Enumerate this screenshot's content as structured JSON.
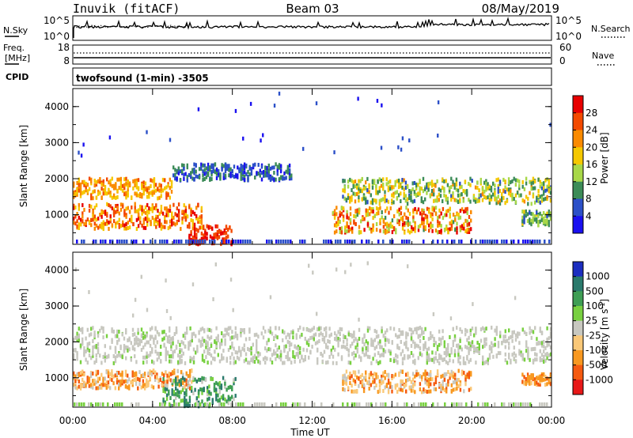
{
  "header": {
    "station": "Inuvik (fitACF)",
    "beam": "Beam 03",
    "date": "08/May/2019"
  },
  "top_panel": {
    "left_label": "N.Sky",
    "right_label": "N.Search",
    "left_ticks": [
      "10^5",
      "10^0"
    ],
    "right_ticks": [
      "10^5",
      "10^0"
    ]
  },
  "freq_panel": {
    "left_label_1": "Freq.",
    "left_label_2": "[MHz]",
    "right_label": "Nave",
    "left_ticks": [
      "18",
      "8"
    ],
    "right_ticks": [
      "60",
      "0"
    ]
  },
  "cpid": {
    "label": "CPID",
    "program": "twofsound (1-min) -3505"
  },
  "chart_data": [
    {
      "type": "heatmap",
      "name": "power",
      "ylabel": "Slant Range [km]",
      "yticks": [
        1000,
        2000,
        3000,
        4000
      ],
      "ylim": [
        180,
        4500
      ],
      "xlim": [
        0,
        24
      ],
      "colorbar": {
        "label": "Power [dB]",
        "ticks": [
          "28",
          "24",
          "20",
          "16",
          "12",
          "8",
          "4"
        ],
        "colors": [
          "#e80000",
          "#f34a00",
          "#fa8a00",
          "#f5c800",
          "#a8d848",
          "#3c8c58",
          "#2c50c8",
          "#1a10f0"
        ]
      },
      "features": [
        {
          "t0": 0.0,
          "t1": 5.0,
          "r0": 1450,
          "r1": 2000,
          "level": "16-24"
        },
        {
          "t0": 5.0,
          "t1": 11.0,
          "r0": 1950,
          "r1": 2400,
          "level": "4-12"
        },
        {
          "t0": 13.5,
          "t1": 24.0,
          "r0": 1300,
          "r1": 2000,
          "level": "8-20"
        },
        {
          "t0": 0.0,
          "t1": 6.5,
          "r0": 600,
          "r1": 1300,
          "level": "16-28"
        },
        {
          "t0": 5.8,
          "t1": 8.0,
          "r0": 180,
          "r1": 700,
          "level": "24-28"
        },
        {
          "t0": 13.0,
          "t1": 20.0,
          "r0": 500,
          "r1": 1200,
          "level": "12-28"
        },
        {
          "t0": 22.5,
          "t1": 24.0,
          "r0": 700,
          "r1": 1100,
          "level": "8-16"
        }
      ]
    },
    {
      "type": "heatmap",
      "name": "velocity",
      "ylabel": "Slant Range [km]",
      "xlabel": "Time UT",
      "yticks": [
        1000,
        2000,
        3000,
        4000
      ],
      "ylim": [
        180,
        4500
      ],
      "xlim": [
        0,
        24
      ],
      "xticks": [
        "00:00",
        "04:00",
        "08:00",
        "12:00",
        "16:00",
        "20:00",
        "00:00"
      ],
      "colorbar": {
        "label": "Velocity [m s^-1]",
        "ticks": [
          "1000",
          "500",
          "100",
          "25",
          "-25",
          "-100",
          "-500",
          "-1000"
        ],
        "colors": [
          "#1c2ec0",
          "#2a7a6c",
          "#3e9e54",
          "#78d040",
          "#c8c8c0",
          "#fac878",
          "#f89820",
          "#f55a10",
          "#e81818"
        ]
      },
      "features": [
        {
          "t0": 0.0,
          "t1": 24.0,
          "r0": 1400,
          "r1": 2400,
          "level": "-25..25"
        },
        {
          "t0": 0.0,
          "t1": 6.0,
          "r0": 700,
          "r1": 1200,
          "level": "-100..-500"
        },
        {
          "t0": 4.5,
          "t1": 8.2,
          "r0": 200,
          "r1": 1000,
          "level": "100..500"
        },
        {
          "t0": 13.5,
          "t1": 20.0,
          "r0": 600,
          "r1": 1200,
          "level": "-100..-500"
        },
        {
          "t0": 22.5,
          "t1": 24.0,
          "r0": 800,
          "r1": 1100,
          "level": "-500"
        }
      ]
    }
  ]
}
